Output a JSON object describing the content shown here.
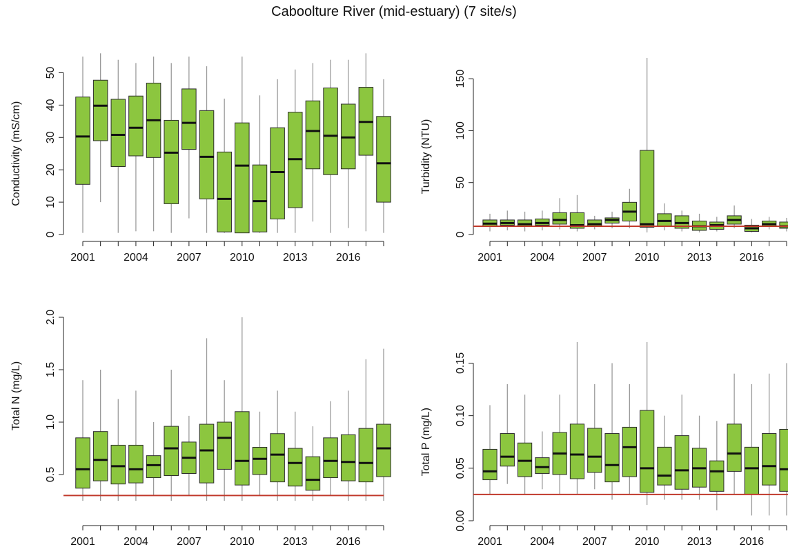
{
  "page": {
    "title": "Caboolture River (mid-estuary) (7 site/s)"
  },
  "colors": {
    "box_fill": "#8cc63f",
    "median": "#111111",
    "whisker": "#9a9a9a",
    "reference_line": "#c0392b",
    "axis": "#222222"
  },
  "chart_data": [
    {
      "type": "box",
      "ylabel": "Conductivity (mS/cm)",
      "ylim": [
        0,
        55
      ],
      "yticks": [
        0,
        10,
        20,
        30,
        40,
        50
      ],
      "xticks": [
        "2001",
        "2004",
        "2007",
        "2010",
        "2013",
        "2016"
      ],
      "reference_line": null,
      "boxes": [
        {
          "year": 2001,
          "wlo": 0.5,
          "q1": 15.5,
          "med": 30.3,
          "q3": 42.5,
          "whi": 55
        },
        {
          "year": 2002,
          "wlo": 10,
          "q1": 29,
          "med": 39.8,
          "q3": 47.7,
          "whi": 56
        },
        {
          "year": 2003,
          "wlo": 0.5,
          "q1": 21,
          "med": 30.8,
          "q3": 41.8,
          "whi": 54
        },
        {
          "year": 2004,
          "wlo": 1,
          "q1": 24.3,
          "med": 33,
          "q3": 42.8,
          "whi": 53
        },
        {
          "year": 2005,
          "wlo": 1,
          "q1": 23.8,
          "med": 35.3,
          "q3": 46.8,
          "whi": 55
        },
        {
          "year": 2006,
          "wlo": 0.5,
          "q1": 9.5,
          "med": 25.3,
          "q3": 35.3,
          "whi": 53
        },
        {
          "year": 2007,
          "wlo": 5,
          "q1": 26.3,
          "med": 34.5,
          "q3": 45,
          "whi": 55
        },
        {
          "year": 2008,
          "wlo": 0.5,
          "q1": 11,
          "med": 24,
          "q3": 38.3,
          "whi": 52
        },
        {
          "year": 2009,
          "wlo": 0.5,
          "q1": 0.8,
          "med": 11,
          "q3": 25.5,
          "whi": 42
        },
        {
          "year": 2010,
          "wlo": 0.5,
          "q1": 0.5,
          "med": 21.3,
          "q3": 34.5,
          "whi": 55
        },
        {
          "year": 2011,
          "wlo": 0.5,
          "q1": 0.8,
          "med": 10.3,
          "q3": 21.5,
          "whi": 43
        },
        {
          "year": 2012,
          "wlo": 0.5,
          "q1": 4.8,
          "med": 19.3,
          "q3": 33,
          "whi": 48
        },
        {
          "year": 2013,
          "wlo": 0.5,
          "q1": 8.3,
          "med": 23.3,
          "q3": 37.8,
          "whi": 51
        },
        {
          "year": 2014,
          "wlo": 4,
          "q1": 20.3,
          "med": 32,
          "q3": 41.3,
          "whi": 53
        },
        {
          "year": 2015,
          "wlo": 0.5,
          "q1": 18.5,
          "med": 30.5,
          "q3": 45.3,
          "whi": 54
        },
        {
          "year": 2016,
          "wlo": 2,
          "q1": 20.3,
          "med": 30,
          "q3": 40.3,
          "whi": 54
        },
        {
          "year": 2017,
          "wlo": 1,
          "q1": 24.5,
          "med": 34.8,
          "q3": 45.5,
          "whi": 56
        },
        {
          "year": 2018,
          "wlo": 0.5,
          "q1": 10,
          "med": 22,
          "q3": 36.5,
          "whi": 48
        }
      ]
    },
    {
      "type": "box",
      "ylabel": "Turbidity (NTU)",
      "ylim": [
        0,
        170
      ],
      "yticks": [
        0,
        50,
        100,
        150
      ],
      "xticks": [
        "2001",
        "2004",
        "2007",
        "2010",
        "2013",
        "2016"
      ],
      "reference_line": 8,
      "boxes": [
        {
          "year": 2001,
          "wlo": 3,
          "q1": 8,
          "med": 10.5,
          "q3": 14,
          "whi": 20
        },
        {
          "year": 2002,
          "wlo": 4,
          "q1": 9,
          "med": 11,
          "q3": 14,
          "whi": 23
        },
        {
          "year": 2003,
          "wlo": 3,
          "q1": 8,
          "med": 10,
          "q3": 14,
          "whi": 22
        },
        {
          "year": 2004,
          "wlo": 4,
          "q1": 9,
          "med": 11,
          "q3": 15,
          "whi": 23
        },
        {
          "year": 2005,
          "wlo": 5,
          "q1": 10,
          "med": 14,
          "q3": 21,
          "whi": 35
        },
        {
          "year": 2006,
          "wlo": 3,
          "q1": 6,
          "med": 9,
          "q3": 21,
          "whi": 38
        },
        {
          "year": 2007,
          "wlo": 5,
          "q1": 8,
          "med": 10,
          "q3": 14,
          "whi": 18
        },
        {
          "year": 2008,
          "wlo": 6,
          "q1": 11,
          "med": 14,
          "q3": 16,
          "whi": 22
        },
        {
          "year": 2009,
          "wlo": 6,
          "q1": 13,
          "med": 22,
          "q3": 31,
          "whi": 44
        },
        {
          "year": 2010,
          "wlo": 2,
          "q1": 7,
          "med": 10,
          "q3": 81,
          "whi": 170
        },
        {
          "year": 2011,
          "wlo": 4,
          "q1": 8,
          "med": 13,
          "q3": 20,
          "whi": 30
        },
        {
          "year": 2012,
          "wlo": 3,
          "q1": 6,
          "med": 11,
          "q3": 18,
          "whi": 23
        },
        {
          "year": 2013,
          "wlo": 2,
          "q1": 4,
          "med": 8,
          "q3": 13,
          "whi": 20
        },
        {
          "year": 2014,
          "wlo": 3,
          "q1": 5,
          "med": 9,
          "q3": 12,
          "whi": 17
        },
        {
          "year": 2015,
          "wlo": 6,
          "q1": 10,
          "med": 14,
          "q3": 18,
          "whi": 28
        },
        {
          "year": 2016,
          "wlo": 2,
          "q1": 3,
          "med": 6,
          "q3": 9,
          "whi": 15
        },
        {
          "year": 2017,
          "wlo": 5,
          "q1": 8,
          "med": 10,
          "q3": 13,
          "whi": 17
        },
        {
          "year": 2018,
          "wlo": 3,
          "q1": 6,
          "med": 8,
          "q3": 12,
          "whi": 16
        }
      ]
    },
    {
      "type": "box",
      "ylabel": "Total N (mg/L)",
      "ylim": [
        0.25,
        2.0
      ],
      "yticks": [
        0.5,
        1.0,
        1.5,
        2.0
      ],
      "ytick_labels": [
        "0.5",
        "1.0",
        "1.5",
        "2.0"
      ],
      "xticks": [
        "2001",
        "2004",
        "2007",
        "2010",
        "2013",
        "2016"
      ],
      "reference_line": 0.3,
      "boxes": [
        {
          "year": 2001,
          "wlo": 0.2,
          "q1": 0.37,
          "med": 0.55,
          "q3": 0.85,
          "whi": 1.4
        },
        {
          "year": 2002,
          "wlo": 0.25,
          "q1": 0.44,
          "med": 0.64,
          "q3": 0.91,
          "whi": 1.5
        },
        {
          "year": 2003,
          "wlo": 0.25,
          "q1": 0.41,
          "med": 0.58,
          "q3": 0.78,
          "whi": 1.22
        },
        {
          "year": 2004,
          "wlo": 0.25,
          "q1": 0.42,
          "med": 0.55,
          "q3": 0.78,
          "whi": 1.3
        },
        {
          "year": 2005,
          "wlo": 0.3,
          "q1": 0.47,
          "med": 0.59,
          "q3": 0.68,
          "whi": 1.0
        },
        {
          "year": 2006,
          "wlo": 0.25,
          "q1": 0.49,
          "med": 0.75,
          "q3": 0.96,
          "whi": 1.5
        },
        {
          "year": 2007,
          "wlo": 0.3,
          "q1": 0.51,
          "med": 0.66,
          "q3": 0.81,
          "whi": 1.06
        },
        {
          "year": 2008,
          "wlo": 0.25,
          "q1": 0.42,
          "med": 0.73,
          "q3": 0.98,
          "whi": 1.8
        },
        {
          "year": 2009,
          "wlo": 0.25,
          "q1": 0.55,
          "med": 0.85,
          "q3": 1.0,
          "whi": 1.4
        },
        {
          "year": 2010,
          "wlo": 0.25,
          "q1": 0.4,
          "med": 0.63,
          "q3": 1.1,
          "whi": 2.0
        },
        {
          "year": 2011,
          "wlo": 0.3,
          "q1": 0.5,
          "med": 0.65,
          "q3": 0.76,
          "whi": 1.1
        },
        {
          "year": 2012,
          "wlo": 0.25,
          "q1": 0.43,
          "med": 0.69,
          "q3": 0.89,
          "whi": 1.3
        },
        {
          "year": 2013,
          "wlo": 0.25,
          "q1": 0.39,
          "med": 0.61,
          "q3": 0.75,
          "whi": 1.1
        },
        {
          "year": 2014,
          "wlo": 0.25,
          "q1": 0.35,
          "med": 0.45,
          "q3": 0.67,
          "whi": 0.96
        },
        {
          "year": 2015,
          "wlo": 0.3,
          "q1": 0.47,
          "med": 0.63,
          "q3": 0.85,
          "whi": 1.2
        },
        {
          "year": 2016,
          "wlo": 0.25,
          "q1": 0.44,
          "med": 0.62,
          "q3": 0.88,
          "whi": 1.3
        },
        {
          "year": 2017,
          "wlo": 0.25,
          "q1": 0.43,
          "med": 0.61,
          "q3": 0.94,
          "whi": 1.6
        },
        {
          "year": 2018,
          "wlo": 0.25,
          "q1": 0.48,
          "med": 0.75,
          "q3": 0.98,
          "whi": 1.7
        }
      ]
    },
    {
      "type": "box",
      "ylabel": "Total P (mg/L)",
      "ylim": [
        0,
        0.17
      ],
      "yticks": [
        0.0,
        0.05,
        0.1,
        0.15
      ],
      "ytick_labels": [
        "0.00",
        "0.05",
        "0.10",
        "0.15"
      ],
      "xticks": [
        "2001",
        "2004",
        "2007",
        "2010",
        "2013",
        "2016"
      ],
      "reference_line": 0.025,
      "boxes": [
        {
          "year": 2001,
          "wlo": 0.025,
          "q1": 0.039,
          "med": 0.047,
          "q3": 0.068,
          "whi": 0.11
        },
        {
          "year": 2002,
          "wlo": 0.035,
          "q1": 0.052,
          "med": 0.061,
          "q3": 0.083,
          "whi": 0.13
        },
        {
          "year": 2003,
          "wlo": 0.025,
          "q1": 0.042,
          "med": 0.057,
          "q3": 0.074,
          "whi": 0.12
        },
        {
          "year": 2004,
          "wlo": 0.03,
          "q1": 0.045,
          "med": 0.051,
          "q3": 0.06,
          "whi": 0.085
        },
        {
          "year": 2005,
          "wlo": 0.025,
          "q1": 0.044,
          "med": 0.064,
          "q3": 0.084,
          "whi": 0.12
        },
        {
          "year": 2006,
          "wlo": 0.025,
          "q1": 0.04,
          "med": 0.063,
          "q3": 0.092,
          "whi": 0.17
        },
        {
          "year": 2007,
          "wlo": 0.03,
          "q1": 0.046,
          "med": 0.061,
          "q3": 0.088,
          "whi": 0.13
        },
        {
          "year": 2008,
          "wlo": 0.02,
          "q1": 0.037,
          "med": 0.053,
          "q3": 0.083,
          "whi": 0.15
        },
        {
          "year": 2009,
          "wlo": 0.025,
          "q1": 0.042,
          "med": 0.07,
          "q3": 0.089,
          "whi": 0.13
        },
        {
          "year": 2010,
          "wlo": 0.015,
          "q1": 0.027,
          "med": 0.05,
          "q3": 0.105,
          "whi": 0.17
        },
        {
          "year": 2011,
          "wlo": 0.02,
          "q1": 0.034,
          "med": 0.043,
          "q3": 0.07,
          "whi": 0.1
        },
        {
          "year": 2012,
          "wlo": 0.02,
          "q1": 0.03,
          "med": 0.048,
          "q3": 0.081,
          "whi": 0.12
        },
        {
          "year": 2013,
          "wlo": 0.02,
          "q1": 0.032,
          "med": 0.05,
          "q3": 0.069,
          "whi": 0.1
        },
        {
          "year": 2014,
          "wlo": 0.01,
          "q1": 0.028,
          "med": 0.047,
          "q3": 0.057,
          "whi": 0.095
        },
        {
          "year": 2015,
          "wlo": 0.025,
          "q1": 0.047,
          "med": 0.064,
          "q3": 0.092,
          "whi": 0.14
        },
        {
          "year": 2016,
          "wlo": 0.005,
          "q1": 0.025,
          "med": 0.05,
          "q3": 0.07,
          "whi": 0.13
        },
        {
          "year": 2017,
          "wlo": 0.005,
          "q1": 0.034,
          "med": 0.052,
          "q3": 0.083,
          "whi": 0.14
        },
        {
          "year": 2018,
          "wlo": 0.005,
          "q1": 0.028,
          "med": 0.049,
          "q3": 0.087,
          "whi": 0.15
        }
      ]
    }
  ]
}
